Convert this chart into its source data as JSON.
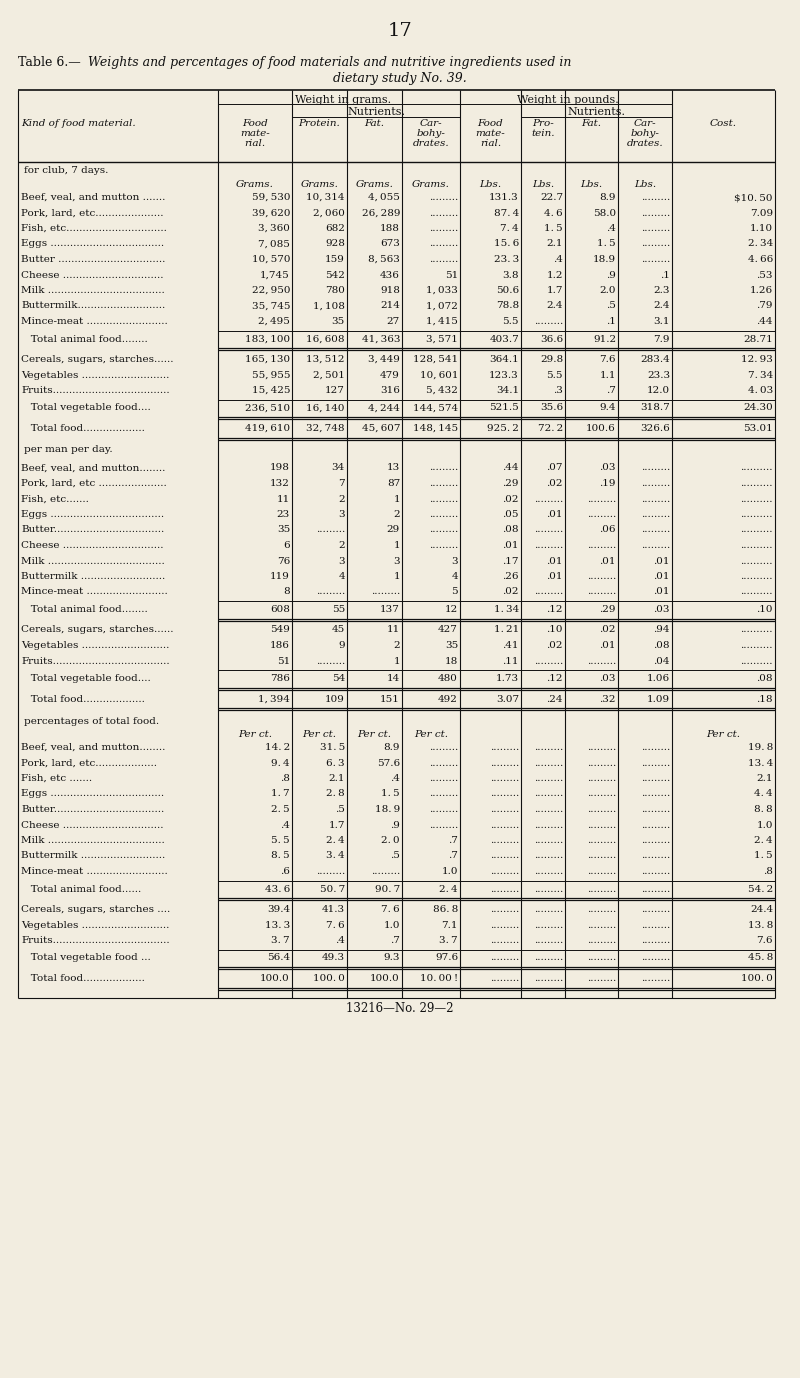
{
  "page_number": "17",
  "bg_color": "#f2ede0",
  "title_prefix": "Table 6.—",
  "title_main": "Weights and percentages of food materials and nutritive ingredients used in",
  "title_sub": "dietary study No. 39.",
  "col_header_units_club": [
    "",
    "Grams.",
    "Grams.",
    "Grams.",
    "Grams.",
    "Lbs.",
    "Lbs.",
    "Lbs.",
    "Lbs.",
    ""
  ],
  "section3_units": [
    "",
    "Per ct.",
    "Per ct.",
    "Per ct.",
    "Per ct.",
    "",
    "",
    "",
    "",
    "Per ct."
  ],
  "section1_label": "for club, 7 days.",
  "section1_rows": [
    [
      "Beef, veal, and mutton .......",
      "59, 530",
      "10, 314",
      "4, 055",
      ".........",
      "131.3",
      "22.7",
      "8.9",
      ".........",
      "$10. 50"
    ],
    [
      "Pork, lard, etc.....................",
      "39, 620",
      "2, 060",
      "26, 289",
      ".........",
      "87. 4",
      "4. 6",
      "58.0",
      ".........",
      "7.09"
    ],
    [
      "Fish, etc...............................",
      "3, 360",
      "682",
      "188",
      ".........",
      "7. 4",
      "1. 5",
      ".4",
      ".........",
      "1.10"
    ],
    [
      "Eggs ...................................",
      "7, 085",
      "928",
      "673",
      ".........",
      "15. 6",
      "2.1",
      "1. 5",
      ".........",
      "2. 34"
    ],
    [
      "Butter .................................",
      "10, 570",
      "159",
      "8, 563",
      ".........",
      "23. 3",
      ".4",
      "18.9",
      ".........",
      "4. 66"
    ],
    [
      "Cheese ...............................",
      "1,745",
      "542",
      "436",
      "51",
      "3.8",
      "1.2",
      ".9",
      ".1",
      ".53"
    ],
    [
      "Milk ....................................",
      "22, 950",
      "780",
      "918",
      "1, 033",
      "50.6",
      "1.7",
      "2.0",
      "2.3",
      "1.26"
    ],
    [
      "Buttermilk...........................",
      "35, 745",
      "1, 108",
      "214",
      "1, 072",
      "78.8",
      "2.4",
      ".5",
      "2.4",
      ".79"
    ],
    [
      "Mince-meat .........................",
      "2, 495",
      "35",
      "27",
      "1, 415",
      "5.5",
      ".........",
      ".1",
      "3.1",
      ".44"
    ]
  ],
  "section1_total": [
    "   Total animal food........",
    "183, 100",
    "16, 608",
    "41, 363",
    "3, 571",
    "403.7",
    "36.6",
    "91.2",
    "7.9",
    "28.71"
  ],
  "section1_veg_rows": [
    [
      "Cereals, sugars, starches......",
      "165, 130",
      "13, 512",
      "3, 449",
      "128, 541",
      "364.1",
      "29.8",
      "7.6",
      "283.4",
      "12. 93"
    ],
    [
      "Vegetables ...........................",
      "55, 955",
      "2, 501",
      "479",
      "10, 601",
      "123.3",
      "5.5",
      "1.1",
      "23.3",
      "7. 34"
    ],
    [
      "Fruits....................................",
      "15, 425",
      "127",
      "316",
      "5, 432",
      "34.1",
      ".3",
      ".7",
      "12.0",
      "4. 03"
    ]
  ],
  "section1_veg_total": [
    "   Total vegetable food....",
    "236, 510",
    "16, 140",
    "4, 244",
    "144, 574",
    "521.5",
    "35.6",
    "9.4",
    "318.7",
    "24.30"
  ],
  "section1_grand_total": [
    "   Total food...................",
    "419, 610",
    "32, 748",
    "45, 607",
    "148, 145",
    "925. 2",
    "72. 2",
    "100.6",
    "326.6",
    "53.01"
  ],
  "section2_label": "per man per day.",
  "section2_rows": [
    [
      "Beef, veal, and mutton........",
      "198",
      "34",
      "13",
      ".........",
      ".44",
      ".07",
      ".03",
      ".........",
      ".........."
    ],
    [
      "Pork, lard, etc .....................",
      "132",
      "7",
      "87",
      ".........",
      ".29",
      ".02",
      ".19",
      ".........",
      ".........."
    ],
    [
      "Fish, etc.......",
      "11",
      "2",
      "1",
      ".........",
      ".02",
      ".........",
      ".........",
      ".........",
      ".........."
    ],
    [
      "Eggs ...................................",
      "23",
      "3",
      "2",
      ".........",
      ".05",
      ".01",
      ".........",
      ".........",
      ".........."
    ],
    [
      "Butter..................................",
      "35",
      ".........",
      "29",
      ".........",
      ".08",
      ".........",
      ".06",
      ".........",
      ".........."
    ],
    [
      "Cheese ...............................",
      "6",
      "2",
      "1",
      ".........",
      ".01",
      ".........",
      ".........",
      ".........",
      ".........."
    ],
    [
      "Milk ....................................",
      "76",
      "3",
      "3",
      "3",
      ".17",
      ".01",
      ".01",
      ".01",
      ".........."
    ],
    [
      "Buttermilk ..........................",
      "119",
      "4",
      "1",
      "4",
      ".26",
      ".01",
      ".........",
      ".01",
      ".........."
    ],
    [
      "Mince-meat .........................",
      "8",
      ".........",
      ".........",
      "5",
      ".02",
      ".........",
      ".........",
      ".01",
      ".........."
    ]
  ],
  "section2_total": [
    "   Total animal food........",
    "608",
    "55",
    "137",
    "12",
    "1. 34",
    ".12",
    ".29",
    ".03",
    ".10"
  ],
  "section2_veg_rows": [
    [
      "Cereals, sugars, starches......",
      "549",
      "45",
      "11",
      "427",
      "1. 21",
      ".10",
      ".02",
      ".94",
      ".........."
    ],
    [
      "Vegetables ...........................",
      "186",
      "9",
      "2",
      "35",
      ".41",
      ".02",
      ".01",
      ".08",
      ".........."
    ],
    [
      "Fruits....................................",
      "51",
      ".........",
      "1",
      "18",
      ".11",
      ".........",
      ".........",
      ".04",
      ".........."
    ]
  ],
  "section2_veg_total": [
    "   Total vegetable food....",
    "786",
    "54",
    "14",
    "480",
    "1.73",
    ".12",
    ".03",
    "1.06",
    ".08"
  ],
  "section2_grand_total": [
    "   Total food...................",
    "1, 394",
    "109",
    "151",
    "492",
    "3.07",
    ".24",
    ".32",
    "1.09",
    ".18"
  ],
  "section3_label": "percentages of total food.",
  "section3_rows": [
    [
      "Beef, veal, and mutton........",
      "14. 2",
      "31. 5",
      "8.9",
      ".........",
      ".........",
      ".........",
      ".........",
      ".........",
      "19. 8"
    ],
    [
      "Pork, lard, etc...................",
      "9. 4",
      "6. 3",
      "57.6",
      ".........",
      ".........",
      ".........",
      ".........",
      ".........",
      "13. 4"
    ],
    [
      "Fish, etc .......",
      ".8",
      "2.1",
      ".4",
      ".........",
      ".........",
      ".........",
      ".........",
      ".........",
      "2.1"
    ],
    [
      "Eggs ...................................",
      "1. 7",
      "2. 8",
      "1. 5",
      ".........",
      ".........",
      ".........",
      ".........",
      ".........",
      "4. 4"
    ],
    [
      "Butter..................................",
      "2. 5",
      ".5",
      "18. 9",
      ".........",
      ".........",
      ".........",
      ".........",
      ".........",
      "8. 8"
    ],
    [
      "Cheese ...............................",
      ".4",
      "1.7",
      ".9",
      ".........",
      ".........",
      ".........",
      ".........",
      ".........",
      "1.0"
    ],
    [
      "Milk ....................................",
      "5. 5",
      "2. 4",
      "2. 0",
      ".7",
      ".........",
      ".........",
      ".........",
      ".........",
      "2. 4"
    ],
    [
      "Buttermilk ..........................",
      "8. 5",
      "3. 4",
      ".5",
      ".7",
      ".........",
      ".........",
      ".........",
      ".........",
      "1. 5"
    ],
    [
      "Mince-meat .........................",
      ".6",
      ".........",
      ".........",
      "1.0",
      ".........",
      ".........",
      ".........",
      ".........",
      ".8"
    ]
  ],
  "section3_total": [
    "   Total animal food......",
    "43. 6",
    "50. 7",
    "90. 7",
    "2. 4",
    ".........",
    ".........",
    ".........",
    ".........",
    "54. 2"
  ],
  "section3_veg_rows": [
    [
      "Cereals, sugars, starches ....",
      "39.4",
      "41.3",
      "7. 6",
      "86. 8",
      ".........",
      ".........",
      ".........",
      ".........",
      "24.4"
    ],
    [
      "Vegetables ...........................",
      "13. 3",
      "7. 6",
      "1.0",
      "7.1",
      ".........",
      ".........",
      ".........",
      ".........",
      "13. 8"
    ],
    [
      "Fruits....................................",
      "3. 7",
      ".4",
      ".7",
      "3. 7",
      ".........",
      ".........",
      ".........",
      ".........",
      "7.6"
    ]
  ],
  "section3_veg_total": [
    "   Total vegetable food ...",
    "56.4",
    "49.3",
    "9.3",
    "97.6",
    ".........",
    ".........",
    ".........",
    ".........",
    "45. 8"
  ],
  "section3_grand_total": [
    "   Total food...................",
    "100.0",
    "100. 0",
    "100.0",
    "10. 00 !",
    ".........",
    ".........",
    ".........",
    ".........",
    "100. 0"
  ],
  "footer": "13216—No. 29—2"
}
